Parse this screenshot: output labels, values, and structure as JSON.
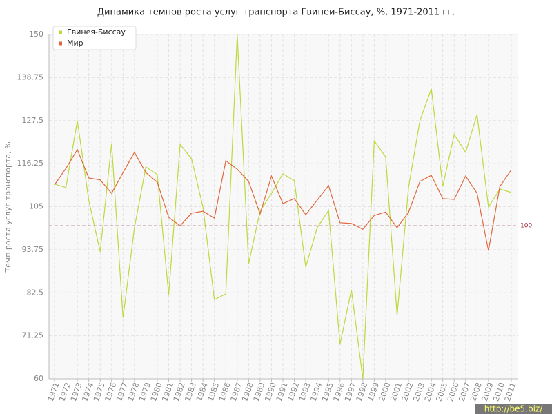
{
  "chart_data": {
    "type": "line",
    "title": "Динамика темпов роста услуг транспорта Гвинеи-Биссау, %, 1971-2011 гг.",
    "y_label": "Темп роста услуг транспорта, %",
    "categories": [
      "1971",
      "1972",
      "1973",
      "1974",
      "1975",
      "1976",
      "1977",
      "1978",
      "1979",
      "1980",
      "1981",
      "1982",
      "1983",
      "1984",
      "1985",
      "1986",
      "1987",
      "1988",
      "1989",
      "1990",
      "1991",
      "1992",
      "1993",
      "1994",
      "1995",
      "1996",
      "1997",
      "1998",
      "1999",
      "2000",
      "2001",
      "2002",
      "2003",
      "2004",
      "2005",
      "2006",
      "2007",
      "2008",
      "2009",
      "2010",
      "2011"
    ],
    "series": [
      {
        "name": "Гвинея-Биссау",
        "color": "#bcd93e",
        "values": [
          110.9,
          110,
          127.5,
          106.7,
          93.2,
          121.5,
          76,
          99.5,
          115.4,
          113.4,
          82,
          121.3,
          117.5,
          104.9,
          80.7,
          82.2,
          150,
          90.1,
          103.8,
          108.5,
          113.6,
          111.8,
          89.2,
          99.5,
          104,
          69,
          83.3,
          60,
          122.2,
          118,
          76.6,
          110,
          127.5,
          135.8,
          110.3,
          123.9,
          119.2,
          129.1,
          104.9,
          109.6,
          108.7
        ]
      },
      {
        "name": "Мир",
        "color": "#e0683c",
        "values": [
          110.7,
          115,
          119.9,
          112.5,
          112,
          108.5,
          113.9,
          119.2,
          113.9,
          111.4,
          102.2,
          100,
          103.3,
          103.8,
          102,
          117,
          114.8,
          111.6,
          103.1,
          113,
          105.8,
          107.1,
          102.9,
          106.7,
          110.5,
          100.8,
          100.6,
          99.1,
          102.7,
          103.6,
          99.5,
          103.5,
          111.6,
          113.2,
          107.1,
          106.9,
          113,
          108.5,
          93.5,
          110.3,
          114.6
        ]
      }
    ],
    "ylim": [
      60,
      150
    ],
    "yticks": [
      60,
      71.25,
      82.5,
      93.75,
      105,
      116.25,
      127.5,
      138.75,
      150
    ],
    "reference_line": 100,
    "reference_color": "#9b2a3c",
    "grid": true,
    "legend": "top-left",
    "watermark": "http://be5.biz/"
  }
}
